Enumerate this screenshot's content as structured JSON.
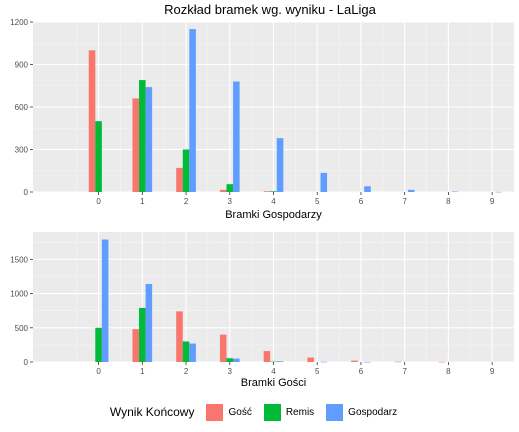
{
  "title": "Rozkład bramek wg. wyniku - LaLiga",
  "legend": {
    "title": "Wynik Końcowy",
    "items": [
      {
        "name": "Gość",
        "color": "#F8766D"
      },
      {
        "name": "Remis",
        "color": "#00BA38"
      },
      {
        "name": "Gospodarz",
        "color": "#619CFF"
      }
    ],
    "position": "bottom"
  },
  "chart_data": [
    {
      "type": "bar",
      "xlabel": "Bramki Gospodarzy",
      "ylabel": "",
      "categories": [
        "0",
        "1",
        "2",
        "3",
        "4",
        "5",
        "6",
        "7",
        "8",
        "9"
      ],
      "ylim": [
        0,
        1200
      ],
      "yticks": [
        0,
        300,
        600,
        900,
        1200
      ],
      "grid": true,
      "series": [
        {
          "name": "Gość",
          "values": [
            1000,
            660,
            170,
            15,
            5,
            0,
            0,
            0,
            0,
            0
          ]
        },
        {
          "name": "Remis",
          "values": [
            500,
            790,
            300,
            55,
            5,
            0,
            0,
            0,
            0,
            0
          ]
        },
        {
          "name": "Gospodarz",
          "values": [
            0,
            740,
            1150,
            780,
            380,
            135,
            40,
            15,
            3,
            1
          ]
        }
      ]
    },
    {
      "type": "bar",
      "xlabel": "Bramki Gości",
      "ylabel": "",
      "categories": [
        "0",
        "1",
        "2",
        "3",
        "4",
        "5",
        "6",
        "7",
        "8",
        "9"
      ],
      "ylim": [
        0,
        1900
      ],
      "yticks": [
        0,
        500,
        1000,
        1500
      ],
      "grid": true,
      "series": [
        {
          "name": "Gość",
          "values": [
            0,
            480,
            740,
            400,
            160,
            65,
            20,
            5,
            2,
            0
          ]
        },
        {
          "name": "Remis",
          "values": [
            500,
            790,
            300,
            55,
            5,
            0,
            0,
            0,
            0,
            0
          ]
        },
        {
          "name": "Gospodarz",
          "values": [
            1790,
            1140,
            270,
            50,
            10,
            3,
            1,
            0,
            0,
            0
          ]
        }
      ]
    }
  ]
}
